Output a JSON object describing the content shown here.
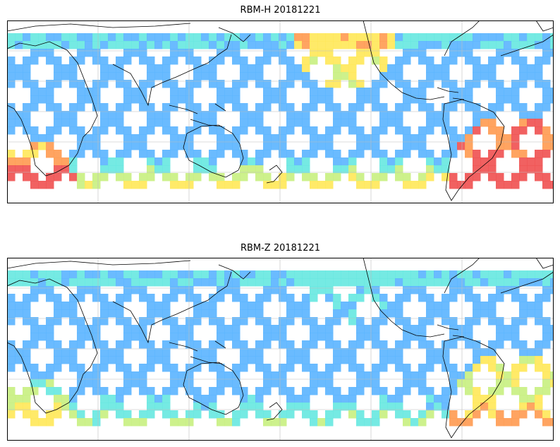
{
  "panels": [
    {
      "title": "RBM-H 20181221",
      "colormap": [
        "#3b4cc0",
        "#6060f0",
        "#5ab4ff",
        "#66e8e0",
        "#c8f080",
        "#ffe858",
        "#ff9a50",
        "#f05050"
      ]
    },
    {
      "title": "RBM-Z 20181221",
      "colormap": [
        "#3b4cc0",
        "#6060f0",
        "#5ab4ff",
        "#66e8e0",
        "#c8f080",
        "#ffe858",
        "#ff9a50",
        "#f05050"
      ]
    }
  ],
  "map": {
    "projection": "equirectangular",
    "gridlines": true,
    "coastlines": true
  }
}
